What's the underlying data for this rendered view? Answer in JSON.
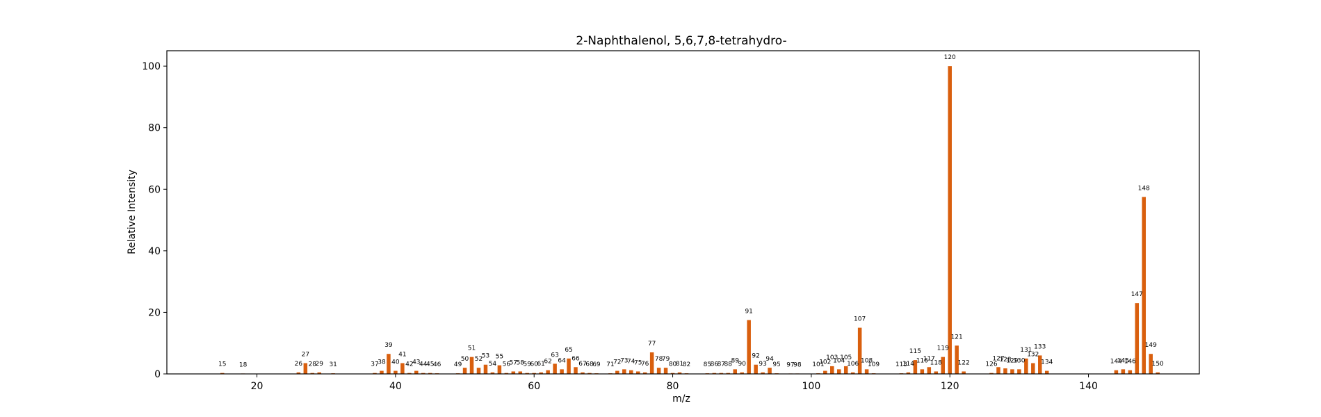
{
  "chart_data": {
    "type": "bar",
    "title": "2-Naphthalenol, 5,6,7,8-tetrahydro-",
    "xlabel": "m/z",
    "ylabel": "Relative Intensity",
    "xlim": [
      7,
      156
    ],
    "ylim": [
      0,
      105
    ],
    "xticks": [
      20,
      40,
      60,
      80,
      100,
      120,
      140
    ],
    "yticks": [
      0,
      20,
      40,
      60,
      80,
      100
    ],
    "grid": false,
    "bar_color": "#d95f0e",
    "peaks": [
      {
        "x": 15,
        "y": 0.3,
        "label": "15"
      },
      {
        "x": 18,
        "y": 0.1,
        "label": "18"
      },
      {
        "x": 26,
        "y": 0.5,
        "label": "26"
      },
      {
        "x": 27,
        "y": 3.5,
        "label": "27"
      },
      {
        "x": 28,
        "y": 0.3,
        "label": "28"
      },
      {
        "x": 29,
        "y": 0.5,
        "label": "29"
      },
      {
        "x": 31,
        "y": 0.2,
        "label": "31"
      },
      {
        "x": 37,
        "y": 0.3,
        "label": "37"
      },
      {
        "x": 38,
        "y": 1.0,
        "label": "38"
      },
      {
        "x": 39,
        "y": 6.5,
        "label": "39"
      },
      {
        "x": 40,
        "y": 1.0,
        "label": "40"
      },
      {
        "x": 41,
        "y": 3.5,
        "label": "41"
      },
      {
        "x": 42,
        "y": 0.3,
        "label": "42"
      },
      {
        "x": 43,
        "y": 1.0,
        "label": "43"
      },
      {
        "x": 44,
        "y": 0.3,
        "label": "44"
      },
      {
        "x": 45,
        "y": 0.3,
        "label": "45"
      },
      {
        "x": 46,
        "y": 0.2,
        "label": "46"
      },
      {
        "x": 49,
        "y": 0.2,
        "label": "49"
      },
      {
        "x": 50,
        "y": 2.0,
        "label": "50"
      },
      {
        "x": 51,
        "y": 5.5,
        "label": "51"
      },
      {
        "x": 52,
        "y": 2.0,
        "label": "52"
      },
      {
        "x": 53,
        "y": 3.0,
        "label": "53"
      },
      {
        "x": 54,
        "y": 0.5,
        "label": "54"
      },
      {
        "x": 55,
        "y": 2.8,
        "label": "55"
      },
      {
        "x": 56,
        "y": 0.3,
        "label": "56"
      },
      {
        "x": 57,
        "y": 0.8,
        "label": "57"
      },
      {
        "x": 58,
        "y": 0.8,
        "label": "58"
      },
      {
        "x": 59,
        "y": 0.3,
        "label": "59"
      },
      {
        "x": 60,
        "y": 0.3,
        "label": "60"
      },
      {
        "x": 61,
        "y": 0.5,
        "label": "61"
      },
      {
        "x": 62,
        "y": 1.2,
        "label": "62"
      },
      {
        "x": 63,
        "y": 3.3,
        "label": "63"
      },
      {
        "x": 64,
        "y": 1.5,
        "label": "64"
      },
      {
        "x": 65,
        "y": 5.0,
        "label": "65"
      },
      {
        "x": 66,
        "y": 2.2,
        "label": "66"
      },
      {
        "x": 67,
        "y": 0.5,
        "label": "67"
      },
      {
        "x": 68,
        "y": 0.3,
        "label": "68"
      },
      {
        "x": 69,
        "y": 0.2,
        "label": "69"
      },
      {
        "x": 71,
        "y": 0.2,
        "label": "71"
      },
      {
        "x": 72,
        "y": 1.0,
        "label": "72"
      },
      {
        "x": 73,
        "y": 1.5,
        "label": "73"
      },
      {
        "x": 74,
        "y": 1.2,
        "label": "74"
      },
      {
        "x": 75,
        "y": 0.8,
        "label": "75"
      },
      {
        "x": 76,
        "y": 0.5,
        "label": "76"
      },
      {
        "x": 77,
        "y": 7.0,
        "label": "77"
      },
      {
        "x": 78,
        "y": 2.0,
        "label": "78"
      },
      {
        "x": 79,
        "y": 2.0,
        "label": "79"
      },
      {
        "x": 80,
        "y": 0.3,
        "label": "80"
      },
      {
        "x": 81,
        "y": 0.5,
        "label": "81"
      },
      {
        "x": 82,
        "y": 0.2,
        "label": "82"
      },
      {
        "x": 85,
        "y": 0.2,
        "label": "85"
      },
      {
        "x": 86,
        "y": 0.3,
        "label": "86"
      },
      {
        "x": 87,
        "y": 0.3,
        "label": "87"
      },
      {
        "x": 88,
        "y": 0.3,
        "label": "88"
      },
      {
        "x": 89,
        "y": 1.5,
        "label": "89"
      },
      {
        "x": 90,
        "y": 0.5,
        "label": "90"
      },
      {
        "x": 91,
        "y": 17.5,
        "label": "91"
      },
      {
        "x": 92,
        "y": 3.0,
        "label": "92"
      },
      {
        "x": 93,
        "y": 0.5,
        "label": "93"
      },
      {
        "x": 94,
        "y": 2.0,
        "label": "94"
      },
      {
        "x": 95,
        "y": 0.2,
        "label": "95"
      },
      {
        "x": 97,
        "y": 0.1,
        "label": "97"
      },
      {
        "x": 98,
        "y": 0.1,
        "label": "98"
      },
      {
        "x": 101,
        "y": 0.2,
        "label": "101"
      },
      {
        "x": 102,
        "y": 1.0,
        "label": "102"
      },
      {
        "x": 103,
        "y": 2.5,
        "label": "103"
      },
      {
        "x": 104,
        "y": 1.5,
        "label": "104"
      },
      {
        "x": 105,
        "y": 2.5,
        "label": "105"
      },
      {
        "x": 106,
        "y": 0.5,
        "label": "106"
      },
      {
        "x": 107,
        "y": 15.0,
        "label": "107"
      },
      {
        "x": 108,
        "y": 1.5,
        "label": "108"
      },
      {
        "x": 109,
        "y": 0.2,
        "label": "109"
      },
      {
        "x": 113,
        "y": 0.2,
        "label": "113"
      },
      {
        "x": 114,
        "y": 0.5,
        "label": "114"
      },
      {
        "x": 115,
        "y": 4.5,
        "label": "115"
      },
      {
        "x": 116,
        "y": 1.5,
        "label": "116"
      },
      {
        "x": 117,
        "y": 2.2,
        "label": "117"
      },
      {
        "x": 118,
        "y": 0.8,
        "label": "118"
      },
      {
        "x": 119,
        "y": 5.5,
        "label": "119"
      },
      {
        "x": 120,
        "y": 100,
        "label": "120"
      },
      {
        "x": 121,
        "y": 9.2,
        "label": "121"
      },
      {
        "x": 122,
        "y": 0.8,
        "label": "122"
      },
      {
        "x": 126,
        "y": 0.3,
        "label": "126"
      },
      {
        "x": 127,
        "y": 2.2,
        "label": "127"
      },
      {
        "x": 128,
        "y": 1.8,
        "label": "128"
      },
      {
        "x": 129,
        "y": 1.5,
        "label": "129"
      },
      {
        "x": 130,
        "y": 1.5,
        "label": "130"
      },
      {
        "x": 131,
        "y": 5.0,
        "label": "131"
      },
      {
        "x": 132,
        "y": 3.5,
        "label": "132"
      },
      {
        "x": 133,
        "y": 6.0,
        "label": "133"
      },
      {
        "x": 134,
        "y": 1.0,
        "label": "134"
      },
      {
        "x": 144,
        "y": 1.2,
        "label": "144"
      },
      {
        "x": 145,
        "y": 1.5,
        "label": "145"
      },
      {
        "x": 146,
        "y": 1.2,
        "label": "146"
      },
      {
        "x": 147,
        "y": 23.0,
        "label": "147"
      },
      {
        "x": 148,
        "y": 57.5,
        "label": "148"
      },
      {
        "x": 149,
        "y": 6.5,
        "label": "149"
      },
      {
        "x": 150,
        "y": 0.5,
        "label": "150"
      }
    ]
  }
}
